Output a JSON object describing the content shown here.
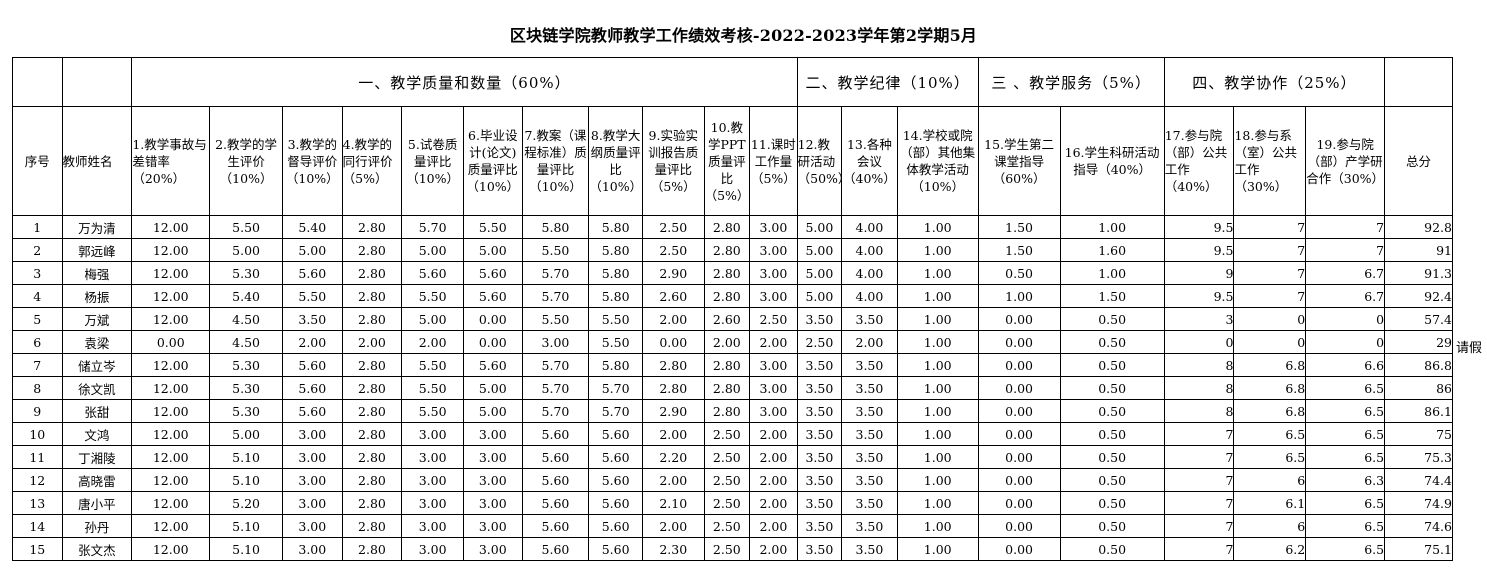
{
  "title": "区块链学院教师教学工作绩效考核-2022-2023学年第2学期5月",
  "groups": {
    "g1": "一、教学质量和数量（60%）",
    "g2": "二、教学纪律（10%）",
    "g3": "三 、教学服务（5%）",
    "g4": "四、教学协作（25%）"
  },
  "headers": {
    "seq": "序号",
    "name": "教师姓名",
    "h1": "1.教学事故与差错率（20%）",
    "h2": "2.教学的学生评价（10%）",
    "h3": "3.教学的督导评价（10%）",
    "h4": "4.教学的同行评价（5%）",
    "h5": "5.试卷质量评比（10%）",
    "h6": "6.毕业设计(论文)质量评比（10%）",
    "h7": "7.教案（课程标准）质量评比（10%）",
    "h8": "8.教学大纲质量评比（10%）",
    "h9": "9.实验实训报告质量评比（5%）",
    "h10": "10.教学PPT质量评比（5%）",
    "h11": "11.课时工作量（5%）",
    "h12": "12.教研活动（50%）",
    "h13": "13.各种会议（40%）",
    "h14": "14.学校或院（部）其他集体教学活动（10%）",
    "h15": "15.学生第二课堂指导（60%）",
    "h16": "16.学生科研活动指导（40%）",
    "h17": "17.参与院（部）公共工作（40%）",
    "h18": "18.参与系（室）公共工作（30%）",
    "h19": "19.参与院（部）产学研合作（30%）",
    "total": "总分"
  },
  "rows": [
    [
      "1",
      "万为清",
      "12.00",
      "5.50",
      "5.40",
      "2.80",
      "5.70",
      "5.50",
      "5.80",
      "5.80",
      "2.50",
      "2.80",
      "3.00",
      "5.00",
      "4.00",
      "1.00",
      "1.50",
      "1.00",
      "9.5",
      "7",
      "7",
      "92.8"
    ],
    [
      "2",
      "郭远峰",
      "12.00",
      "5.00",
      "5.00",
      "2.80",
      "5.00",
      "5.00",
      "5.50",
      "5.80",
      "2.50",
      "2.80",
      "3.00",
      "5.00",
      "4.00",
      "1.00",
      "1.50",
      "1.60",
      "9.5",
      "7",
      "7",
      "91"
    ],
    [
      "3",
      "梅强",
      "12.00",
      "5.30",
      "5.60",
      "2.80",
      "5.60",
      "5.60",
      "5.70",
      "5.80",
      "2.90",
      "2.80",
      "3.00",
      "5.00",
      "4.00",
      "1.00",
      "0.50",
      "1.00",
      "9",
      "7",
      "6.7",
      "91.3"
    ],
    [
      "4",
      "杨振",
      "12.00",
      "5.40",
      "5.50",
      "2.80",
      "5.50",
      "5.60",
      "5.70",
      "5.80",
      "2.60",
      "2.80",
      "3.00",
      "5.00",
      "4.00",
      "1.00",
      "1.00",
      "1.50",
      "9.5",
      "7",
      "6.7",
      "92.4"
    ],
    [
      "5",
      "万斌",
      "12.00",
      "4.50",
      "3.50",
      "2.80",
      "5.00",
      "0.00",
      "5.50",
      "5.50",
      "2.00",
      "2.60",
      "2.50",
      "3.50",
      "3.50",
      "1.00",
      "0.00",
      "0.50",
      "3",
      "0",
      "0",
      "57.4"
    ],
    [
      "6",
      "袁梁",
      "0.00",
      "4.50",
      "2.00",
      "2.00",
      "2.00",
      "0.00",
      "3.00",
      "5.50",
      "0.00",
      "2.00",
      "2.00",
      "2.50",
      "2.00",
      "1.00",
      "0.00",
      "0.50",
      "0",
      "0",
      "0",
      "29"
    ],
    [
      "7",
      "储立岑",
      "12.00",
      "5.30",
      "5.60",
      "2.80",
      "5.50",
      "5.60",
      "5.70",
      "5.80",
      "2.80",
      "2.80",
      "3.00",
      "3.50",
      "3.50",
      "1.00",
      "0.00",
      "0.50",
      "8",
      "6.8",
      "6.6",
      "86.8"
    ],
    [
      "8",
      "徐文凯",
      "12.00",
      "5.30",
      "5.60",
      "2.80",
      "5.50",
      "5.00",
      "5.70",
      "5.70",
      "2.80",
      "2.80",
      "3.00",
      "3.50",
      "3.50",
      "1.00",
      "0.00",
      "0.50",
      "8",
      "6.8",
      "6.5",
      "86"
    ],
    [
      "9",
      "张甜",
      "12.00",
      "5.30",
      "5.60",
      "2.80",
      "5.50",
      "5.00",
      "5.70",
      "5.70",
      "2.90",
      "2.80",
      "3.00",
      "3.50",
      "3.50",
      "1.00",
      "0.00",
      "0.50",
      "8",
      "6.8",
      "6.5",
      "86.1"
    ],
    [
      "10",
      "文鸿",
      "12.00",
      "5.00",
      "3.00",
      "2.80",
      "3.00",
      "3.00",
      "5.60",
      "5.60",
      "2.00",
      "2.50",
      "2.00",
      "3.50",
      "3.50",
      "1.00",
      "0.00",
      "0.50",
      "7",
      "6.5",
      "6.5",
      "75"
    ],
    [
      "11",
      "丁湘陵",
      "12.00",
      "5.10",
      "3.00",
      "2.80",
      "3.00",
      "3.00",
      "5.60",
      "5.60",
      "2.20",
      "2.50",
      "2.00",
      "3.50",
      "3.50",
      "1.00",
      "0.00",
      "0.50",
      "7",
      "6.5",
      "6.5",
      "75.3"
    ],
    [
      "12",
      "高晓雷",
      "12.00",
      "5.10",
      "3.00",
      "2.80",
      "3.00",
      "3.00",
      "5.60",
      "5.60",
      "2.00",
      "2.50",
      "2.00",
      "3.50",
      "3.50",
      "1.00",
      "0.00",
      "0.50",
      "7",
      "6",
      "6.3",
      "74.4"
    ],
    [
      "13",
      "唐小平",
      "12.00",
      "5.20",
      "3.00",
      "2.80",
      "3.00",
      "3.00",
      "5.60",
      "5.60",
      "2.10",
      "2.50",
      "2.00",
      "3.50",
      "3.50",
      "1.00",
      "0.00",
      "0.50",
      "7",
      "6.1",
      "6.5",
      "74.9"
    ],
    [
      "14",
      "孙丹",
      "12.00",
      "5.10",
      "3.00",
      "2.80",
      "3.00",
      "3.00",
      "5.60",
      "5.60",
      "2.00",
      "2.50",
      "2.00",
      "3.50",
      "3.50",
      "1.00",
      "0.00",
      "0.50",
      "7",
      "6",
      "6.5",
      "74.6"
    ],
    [
      "15",
      "张文杰",
      "12.00",
      "5.10",
      "3.00",
      "2.80",
      "3.00",
      "3.00",
      "5.60",
      "5.60",
      "2.30",
      "2.50",
      "2.00",
      "3.50",
      "3.50",
      "1.00",
      "0.00",
      "0.50",
      "7",
      "6.2",
      "6.5",
      "75.1"
    ]
  ],
  "note": "请假"
}
